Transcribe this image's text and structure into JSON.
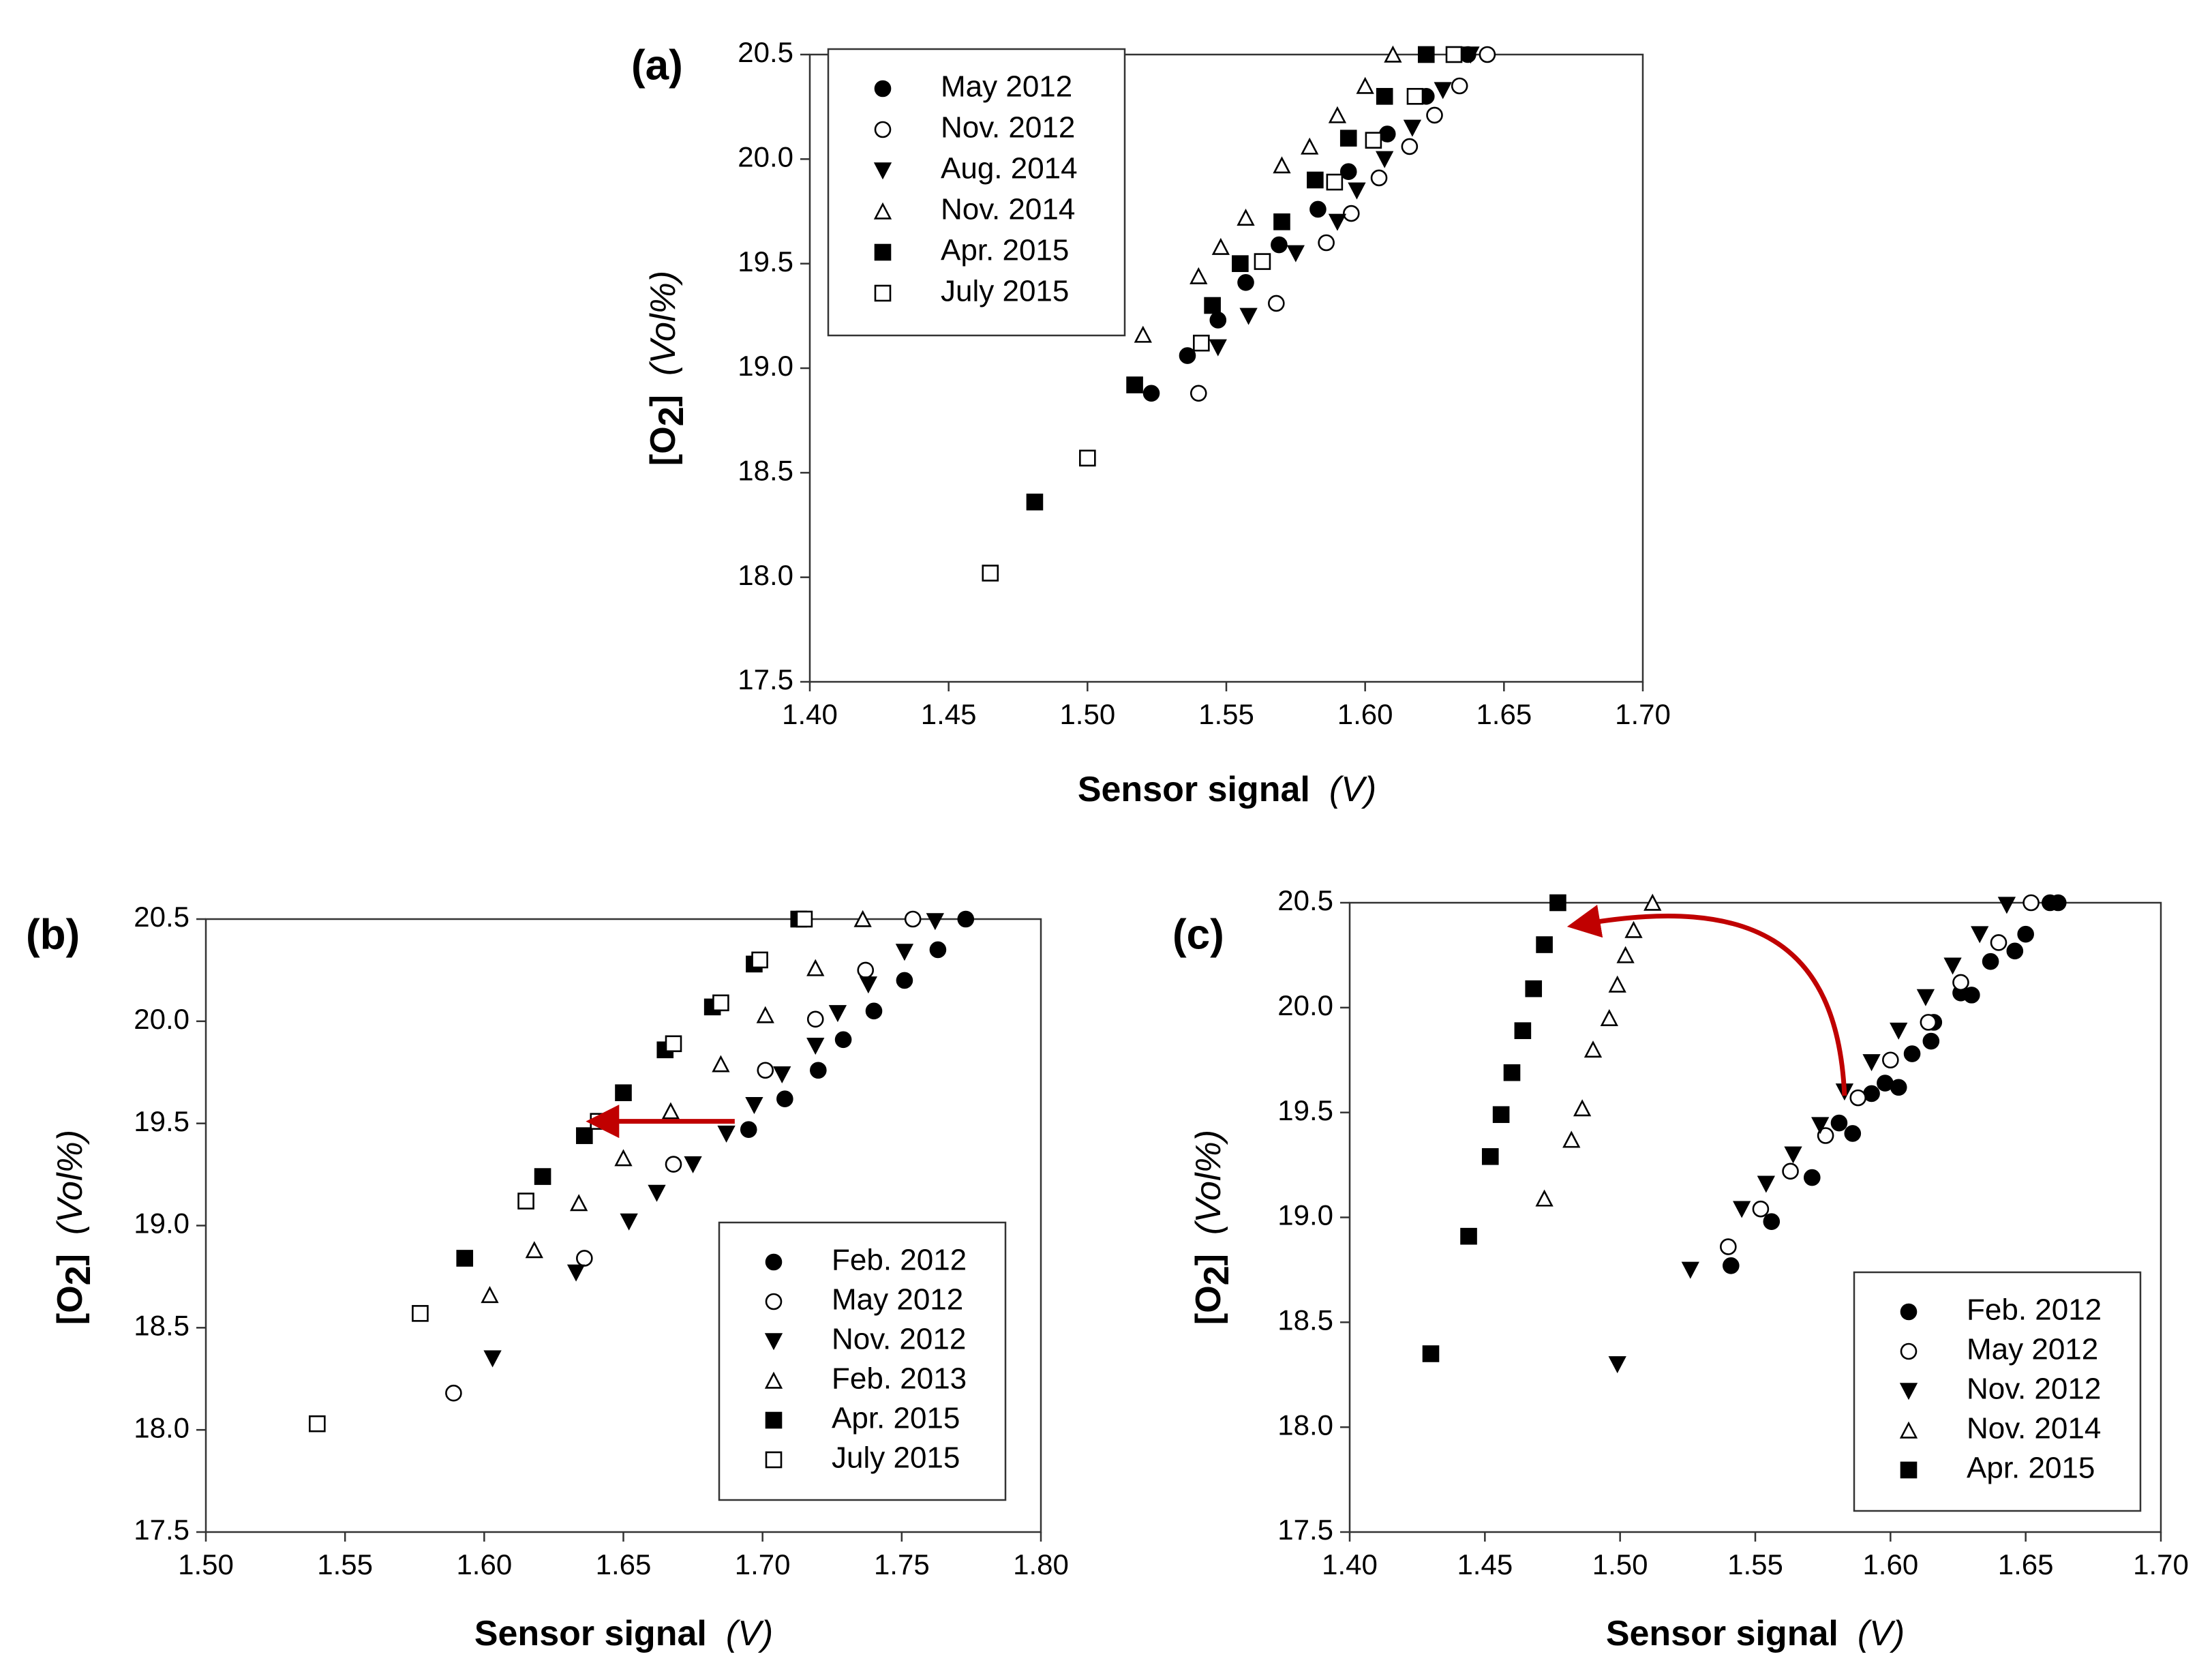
{
  "colors": {
    "marker": "#000000",
    "arrow": "#c00000",
    "frame": "#333333"
  },
  "chart_data": [
    {
      "id": "a",
      "type": "scatter",
      "panel_label": "(a)",
      "xlabel": "Sensor signal",
      "xunit": "(V)",
      "ylabel_main": "[O",
      "ylabel_sub": "2",
      "ylabel_close": "]",
      "yunit": "(Vol%)",
      "xlim": [
        1.4,
        1.7
      ],
      "ylim": [
        17.5,
        20.5
      ],
      "xticks": [
        "1.40",
        "1.45",
        "1.50",
        "1.55",
        "1.60",
        "1.65",
        "1.70"
      ],
      "yticks": [
        "17.5",
        "18.0",
        "18.5",
        "19.0",
        "19.5",
        "20.0",
        "20.5"
      ],
      "legend_position": "top-left",
      "series": [
        {
          "name": "May 2012",
          "marker": "circle-filled",
          "x": [
            1.523,
            1.536,
            1.547,
            1.557,
            1.569,
            1.583,
            1.594,
            1.608,
            1.622,
            1.637
          ],
          "y": [
            18.88,
            19.06,
            19.23,
            19.41,
            19.59,
            19.76,
            19.94,
            20.12,
            20.3,
            20.5
          ]
        },
        {
          "name": "Nov. 2012",
          "marker": "circle-open",
          "x": [
            1.54,
            1.568,
            1.586,
            1.595,
            1.605,
            1.616,
            1.625,
            1.634,
            1.644
          ],
          "y": [
            18.88,
            19.31,
            19.6,
            19.74,
            19.91,
            20.06,
            20.21,
            20.35,
            20.5
          ]
        },
        {
          "name": "Aug. 2014",
          "marker": "triangle-down-filled",
          "x": [
            1.547,
            1.558,
            1.575,
            1.59,
            1.597,
            1.607,
            1.617,
            1.628,
            1.638
          ],
          "y": [
            19.1,
            19.25,
            19.55,
            19.7,
            19.85,
            20.0,
            20.15,
            20.33,
            20.5
          ]
        },
        {
          "name": "Nov. 2014",
          "marker": "triangle-up-open",
          "x": [
            1.52,
            1.54,
            1.548,
            1.557,
            1.57,
            1.58,
            1.59,
            1.6,
            1.61
          ],
          "y": [
            19.16,
            19.44,
            19.58,
            19.72,
            19.97,
            20.06,
            20.21,
            20.35,
            20.5
          ]
        },
        {
          "name": "Apr. 2015",
          "marker": "square-filled",
          "x": [
            1.481,
            1.517,
            1.545,
            1.555,
            1.57,
            1.582,
            1.594,
            1.607,
            1.622
          ],
          "y": [
            18.36,
            18.92,
            19.3,
            19.5,
            19.7,
            19.9,
            20.1,
            20.3,
            20.5
          ]
        },
        {
          "name": "July 2015",
          "marker": "square-open",
          "x": [
            1.465,
            1.5,
            1.541,
            1.563,
            1.589,
            1.603,
            1.618,
            1.632
          ],
          "y": [
            18.02,
            18.57,
            19.12,
            19.51,
            19.89,
            20.09,
            20.3,
            20.5
          ]
        }
      ]
    },
    {
      "id": "b",
      "type": "scatter",
      "panel_label": "(b)",
      "xlabel": "Sensor signal",
      "xunit": "(V)",
      "ylabel_main": "[O",
      "ylabel_sub": "2",
      "ylabel_close": "]",
      "yunit": "(Vol%)",
      "xlim": [
        1.5,
        1.8
      ],
      "ylim": [
        17.5,
        20.5
      ],
      "xticks": [
        "1.50",
        "1.55",
        "1.60",
        "1.65",
        "1.70",
        "1.75",
        "1.80"
      ],
      "yticks": [
        "17.5",
        "18.0",
        "18.5",
        "19.0",
        "19.5",
        "20.0",
        "20.5"
      ],
      "legend_position": "bottom-right",
      "arrow": {
        "from": [
          1.69,
          19.51
        ],
        "to": [
          1.643,
          19.51
        ]
      },
      "series": [
        {
          "name": "Feb. 2012",
          "marker": "circle-filled",
          "x": [
            1.695,
            1.708,
            1.72,
            1.729,
            1.74,
            1.751,
            1.763,
            1.773
          ],
          "y": [
            19.47,
            19.62,
            19.76,
            19.91,
            20.05,
            20.2,
            20.35,
            20.5
          ]
        },
        {
          "name": "May 2012",
          "marker": "circle-open",
          "x": [
            1.589,
            1.636,
            1.668,
            1.701,
            1.719,
            1.737,
            1.754
          ],
          "y": [
            18.18,
            18.84,
            19.3,
            19.76,
            20.01,
            20.25,
            20.5
          ]
        },
        {
          "name": "Nov. 2012",
          "marker": "triangle-down-filled",
          "x": [
            1.603,
            1.633,
            1.652,
            1.662,
            1.675,
            1.687,
            1.697,
            1.707,
            1.719,
            1.727,
            1.738,
            1.751,
            1.762
          ],
          "y": [
            18.35,
            18.77,
            19.02,
            19.16,
            19.3,
            19.45,
            19.59,
            19.74,
            19.88,
            20.04,
            20.18,
            20.34,
            20.49
          ]
        },
        {
          "name": "Feb. 2013",
          "marker": "triangle-up-open",
          "x": [
            1.602,
            1.618,
            1.634,
            1.65,
            1.667,
            1.685,
            1.701,
            1.719,
            1.736
          ],
          "y": [
            18.66,
            18.88,
            19.11,
            19.33,
            19.56,
            19.79,
            20.03,
            20.26,
            20.5
          ]
        },
        {
          "name": "Apr. 2015",
          "marker": "square-filled",
          "x": [
            1.593,
            1.621,
            1.636,
            1.65,
            1.665,
            1.682,
            1.697,
            1.713
          ],
          "y": [
            18.84,
            19.24,
            19.44,
            19.65,
            19.86,
            20.07,
            20.28,
            20.5
          ]
        },
        {
          "name": "July 2015",
          "marker": "square-open",
          "x": [
            1.54,
            1.577,
            1.615,
            1.641,
            1.668,
            1.685,
            1.699,
            1.715
          ],
          "y": [
            18.03,
            18.57,
            19.12,
            19.51,
            19.89,
            20.09,
            20.3,
            20.5
          ]
        }
      ]
    },
    {
      "id": "c",
      "type": "scatter",
      "panel_label": "(c)",
      "xlabel": "Sensor signal",
      "xunit": "(V)",
      "ylabel_main": "[O",
      "ylabel_sub": "2",
      "ylabel_close": "]",
      "yunit": "(Vol%)",
      "xlim": [
        1.4,
        1.7
      ],
      "ylim": [
        17.5,
        20.5
      ],
      "xticks": [
        "1.40",
        "1.45",
        "1.50",
        "1.55",
        "1.60",
        "1.65",
        "1.70"
      ],
      "yticks": [
        "17.5",
        "18.0",
        "18.5",
        "19.0",
        "19.5",
        "20.0",
        "20.5"
      ],
      "legend_position": "bottom-right",
      "arrow": {
        "from": [
          1.583,
          19.58
        ],
        "to": [
          1.487,
          20.4
        ],
        "curved": true
      },
      "series": [
        {
          "name": "Feb. 2012",
          "marker": "circle-filled",
          "x": [
            1.541,
            1.556,
            1.571,
            1.581,
            1.586,
            1.593,
            1.598,
            1.603,
            1.608,
            1.615,
            1.616,
            1.626,
            1.63,
            1.637,
            1.646,
            1.65,
            1.659,
            1.662
          ],
          "y": [
            18.77,
            18.98,
            19.19,
            19.45,
            19.4,
            19.59,
            19.64,
            19.62,
            19.78,
            19.84,
            19.93,
            20.07,
            20.06,
            20.22,
            20.27,
            20.35,
            20.5,
            20.5
          ]
        },
        {
          "name": "May 2012",
          "marker": "circle-open",
          "x": [
            1.54,
            1.552,
            1.563,
            1.576,
            1.588,
            1.6,
            1.614,
            1.626,
            1.64,
            1.652
          ],
          "y": [
            18.86,
            19.04,
            19.22,
            19.39,
            19.57,
            19.75,
            19.93,
            20.12,
            20.31,
            20.5
          ]
        },
        {
          "name": "Nov. 2012",
          "marker": "triangle-down-filled",
          "x": [
            1.499,
            1.526,
            1.545,
            1.554,
            1.564,
            1.574,
            1.583,
            1.593,
            1.603,
            1.613,
            1.623,
            1.633,
            1.643
          ],
          "y": [
            18.3,
            18.75,
            19.04,
            19.16,
            19.3,
            19.44,
            19.6,
            19.74,
            19.89,
            20.05,
            20.2,
            20.35,
            20.49
          ]
        },
        {
          "name": "Nov. 2014",
          "marker": "triangle-up-open",
          "x": [
            1.472,
            1.482,
            1.486,
            1.49,
            1.496,
            1.499,
            1.502,
            1.505,
            1.512
          ],
          "y": [
            19.09,
            19.37,
            19.52,
            19.8,
            19.95,
            20.11,
            20.25,
            20.37,
            20.5
          ]
        },
        {
          "name": "Apr. 2015",
          "marker": "square-filled",
          "x": [
            1.43,
            1.444,
            1.452,
            1.456,
            1.46,
            1.464,
            1.468,
            1.472,
            1.477
          ],
          "y": [
            18.35,
            18.91,
            19.29,
            19.49,
            19.69,
            19.89,
            20.09,
            20.3,
            20.5
          ]
        }
      ]
    }
  ]
}
